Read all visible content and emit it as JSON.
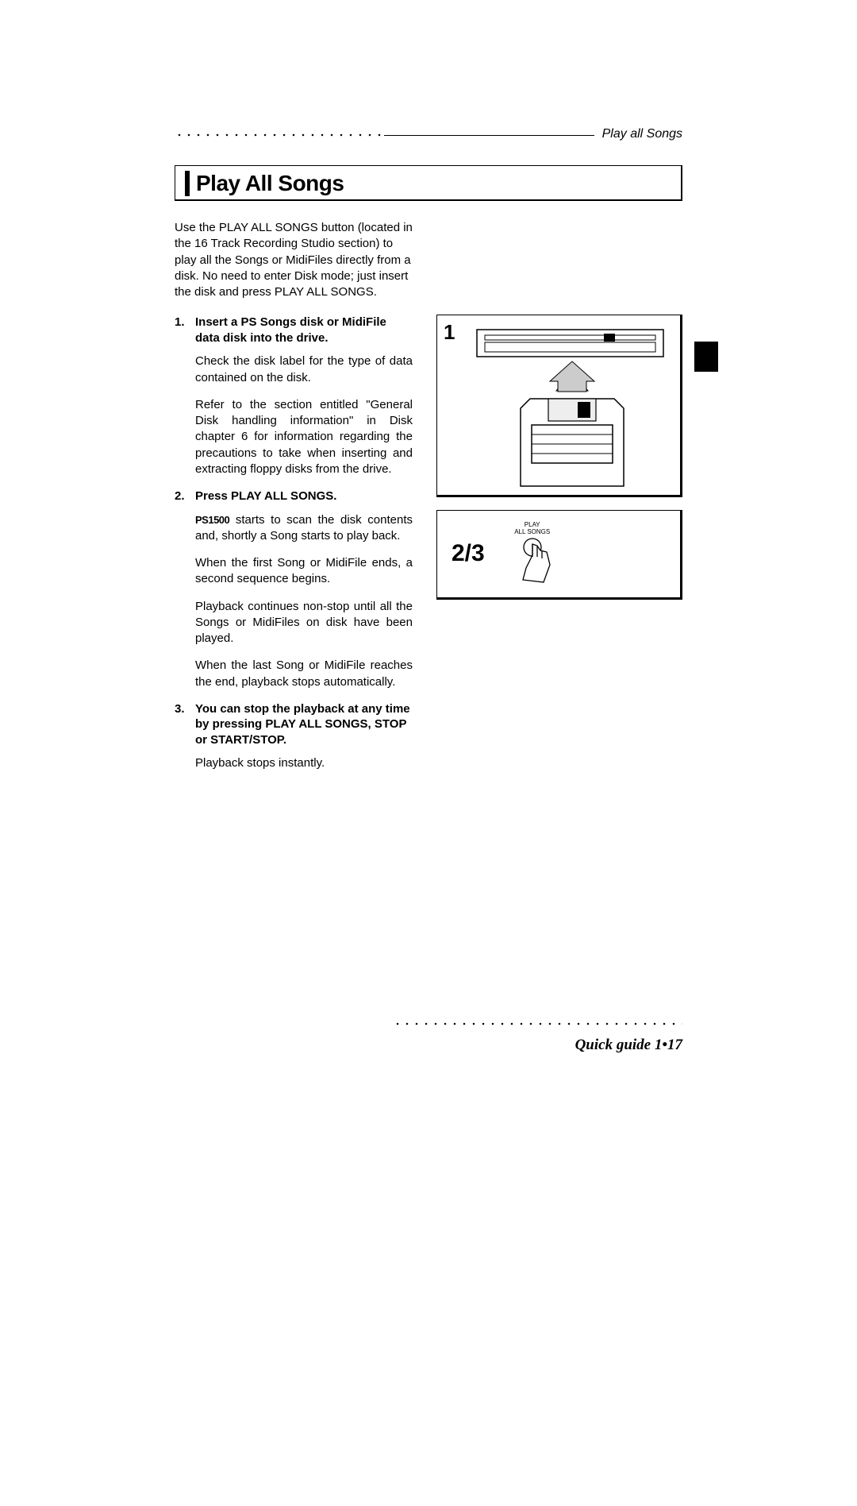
{
  "header": {
    "running_head": "Play all Songs"
  },
  "title": "Play All Songs",
  "intro": "Use the PLAY ALL SONGS button (located in the 16 Track Recording Studio section) to play all the Songs or MidiFiles directly from a disk.  No need to enter Disk mode; just insert the disk and press PLAY ALL SONGS.",
  "steps": [
    {
      "num": "1.",
      "title": "Insert a PS Songs disk or MidiFile data disk into the drive.",
      "paras": [
        "Check the disk label for the type of data contained on the disk.",
        "Refer to the section entitled \"General Disk handling information\" in Disk chapter 6 for information regarding the precautions to take when inserting and extracting floppy disks from the drive."
      ]
    },
    {
      "num": "2.",
      "title": "Press PLAY ALL SONGS.",
      "paras": [
        "{PS1500} starts to scan the disk contents and, shortly a Song starts to play back.",
        "When the first Song or MidiFile ends, a second sequence begins.",
        "Playback continues non-stop until all the Songs or MidiFiles on disk have been played.",
        "When the last Song or MidiFile reaches the end, playback stops automatically."
      ]
    },
    {
      "num": "3.",
      "title": "You can stop the playback at any time by pressing PLAY ALL SONGS, STOP or START/STOP.",
      "paras": [
        "Playback stops instantly."
      ]
    }
  ],
  "figure1_label": "1",
  "figure2_label": "2/3",
  "button_label_line1": "PLAY",
  "button_label_line2": "ALL SONGS",
  "footer": "Quick guide  1•17",
  "product_name": "PS1500"
}
